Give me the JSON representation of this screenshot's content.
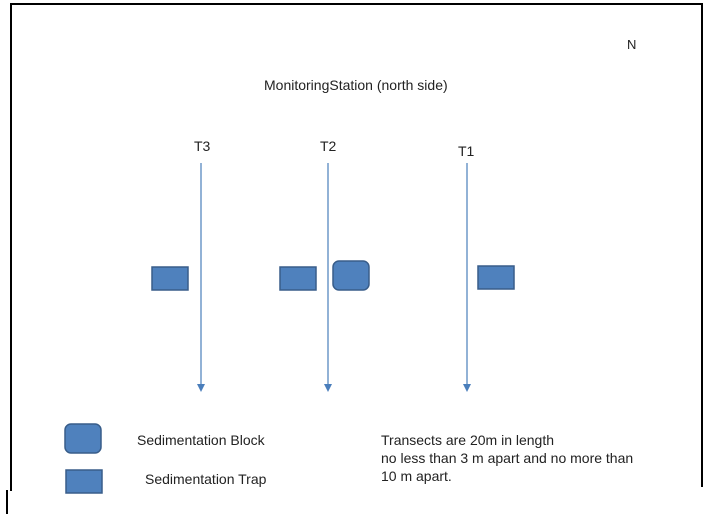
{
  "north_label": "N",
  "station_label": "MonitoringStation (north side)",
  "transects": [
    {
      "label": "T3"
    },
    {
      "label": "T2"
    },
    {
      "label": "T1"
    }
  ],
  "legend": {
    "block_label": "Sedimentation Block",
    "trap_label": "Sedimentation Trap"
  },
  "note": {
    "line1": "Transects are 20m in length",
    "line2": "no less than 3 m apart and no more than",
    "line3": "10 m apart."
  },
  "colors": {
    "shape_fill": "#4f81bd",
    "shape_stroke": "#385d8a",
    "transect_line": "#4a7ebb"
  }
}
